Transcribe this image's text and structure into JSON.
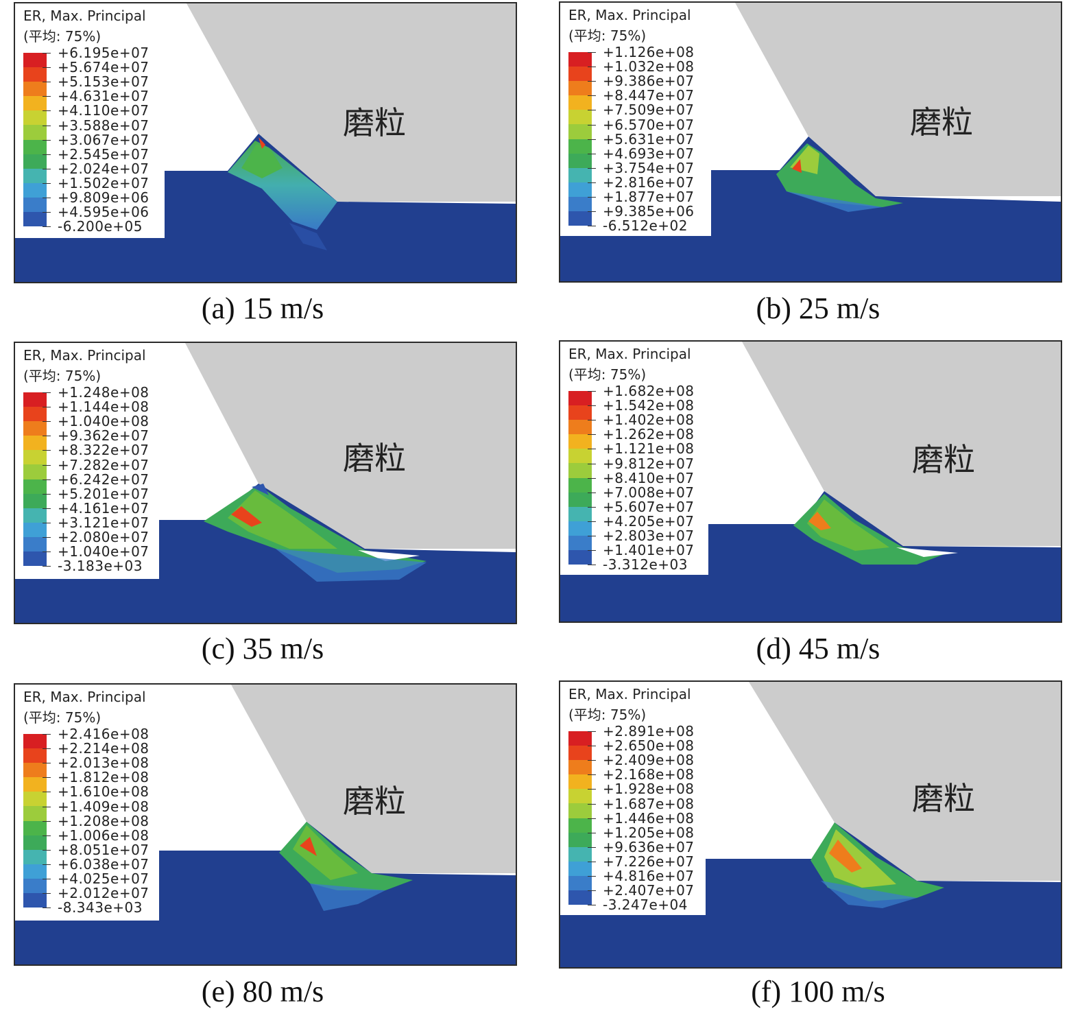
{
  "colors": {
    "grain": "#cccccc",
    "workpiece": "#213f8f",
    "scale": [
      "#213f8f",
      "#2e56ad",
      "#3a7dc9",
      "#3fa0d6",
      "#45b4b0",
      "#3daa59",
      "#4cb44a",
      "#68bb3d",
      "#9ccc3c",
      "#c8d232",
      "#f2b21f",
      "#ee7d1c",
      "#e8431c",
      "#d81f22"
    ]
  },
  "grain_label": "磨粒",
  "panels": [
    {
      "id": "a",
      "caption": "(a) 15 m/s",
      "legend_title": "ER, Max. Principal",
      "legend_subtitle": "(平均: 75%)",
      "values": [
        "+6.195e+07",
        "+5.674e+07",
        "+5.153e+07",
        "+4.631e+07",
        "+4.110e+07",
        "+3.588e+07",
        "+3.067e+07",
        "+2.545e+07",
        "+2.024e+07",
        "+1.502e+07",
        "+9.809e+06",
        "+4.595e+06",
        "-6.200e+05"
      ]
    },
    {
      "id": "b",
      "caption": "(b) 25 m/s",
      "legend_title": "ER, Max. Principal",
      "legend_subtitle": "(平均: 75%)",
      "values": [
        "+1.126e+08",
        "+1.032e+08",
        "+9.386e+07",
        "+8.447e+07",
        "+7.509e+07",
        "+6.570e+07",
        "+5.631e+07",
        "+4.693e+07",
        "+3.754e+07",
        "+2.816e+07",
        "+1.877e+07",
        "+9.385e+06",
        "-6.512e+02"
      ]
    },
    {
      "id": "c",
      "caption": "(c) 35 m/s",
      "legend_title": "ER, Max. Principal",
      "legend_subtitle": "(平均: 75%)",
      "values": [
        "+1.248e+08",
        "+1.144e+08",
        "+1.040e+08",
        "+9.362e+07",
        "+8.322e+07",
        "+7.282e+07",
        "+6.242e+07",
        "+5.201e+07",
        "+4.161e+07",
        "+3.121e+07",
        "+2.080e+07",
        "+1.040e+07",
        "-3.183e+03"
      ]
    },
    {
      "id": "d",
      "caption": "(d) 45 m/s",
      "legend_title": "ER, Max. Principal",
      "legend_subtitle": "(平均: 75%)",
      "values": [
        "+1.682e+08",
        "+1.542e+08",
        "+1.402e+08",
        "+1.262e+08",
        "+1.121e+08",
        "+9.812e+07",
        "+8.410e+07",
        "+7.008e+07",
        "+5.607e+07",
        "+4.205e+07",
        "+2.803e+07",
        "+1.401e+07",
        "-3.312e+03"
      ]
    },
    {
      "id": "e",
      "caption": "(e) 80 m/s",
      "legend_title": "ER, Max. Principal",
      "legend_subtitle": "(平均: 75%)",
      "values": [
        "+2.416e+08",
        "+2.214e+08",
        "+2.013e+08",
        "+1.812e+08",
        "+1.610e+08",
        "+1.409e+08",
        "+1.208e+08",
        "+1.006e+08",
        "+8.051e+07",
        "+6.038e+07",
        "+4.025e+07",
        "+2.012e+07",
        "-8.343e+03"
      ]
    },
    {
      "id": "f",
      "caption": "(f) 100 m/s",
      "legend_title": "ER, Max. Principal",
      "legend_subtitle": "(平均: 75%)",
      "values": [
        "+2.891e+08",
        "+2.650e+08",
        "+2.409e+08",
        "+2.168e+08",
        "+1.928e+08",
        "+1.687e+08",
        "+1.446e+08",
        "+1.205e+08",
        "+9.636e+07",
        "+7.226e+07",
        "+4.816e+07",
        "+2.407e+07",
        "-3.247e+04"
      ]
    }
  ]
}
